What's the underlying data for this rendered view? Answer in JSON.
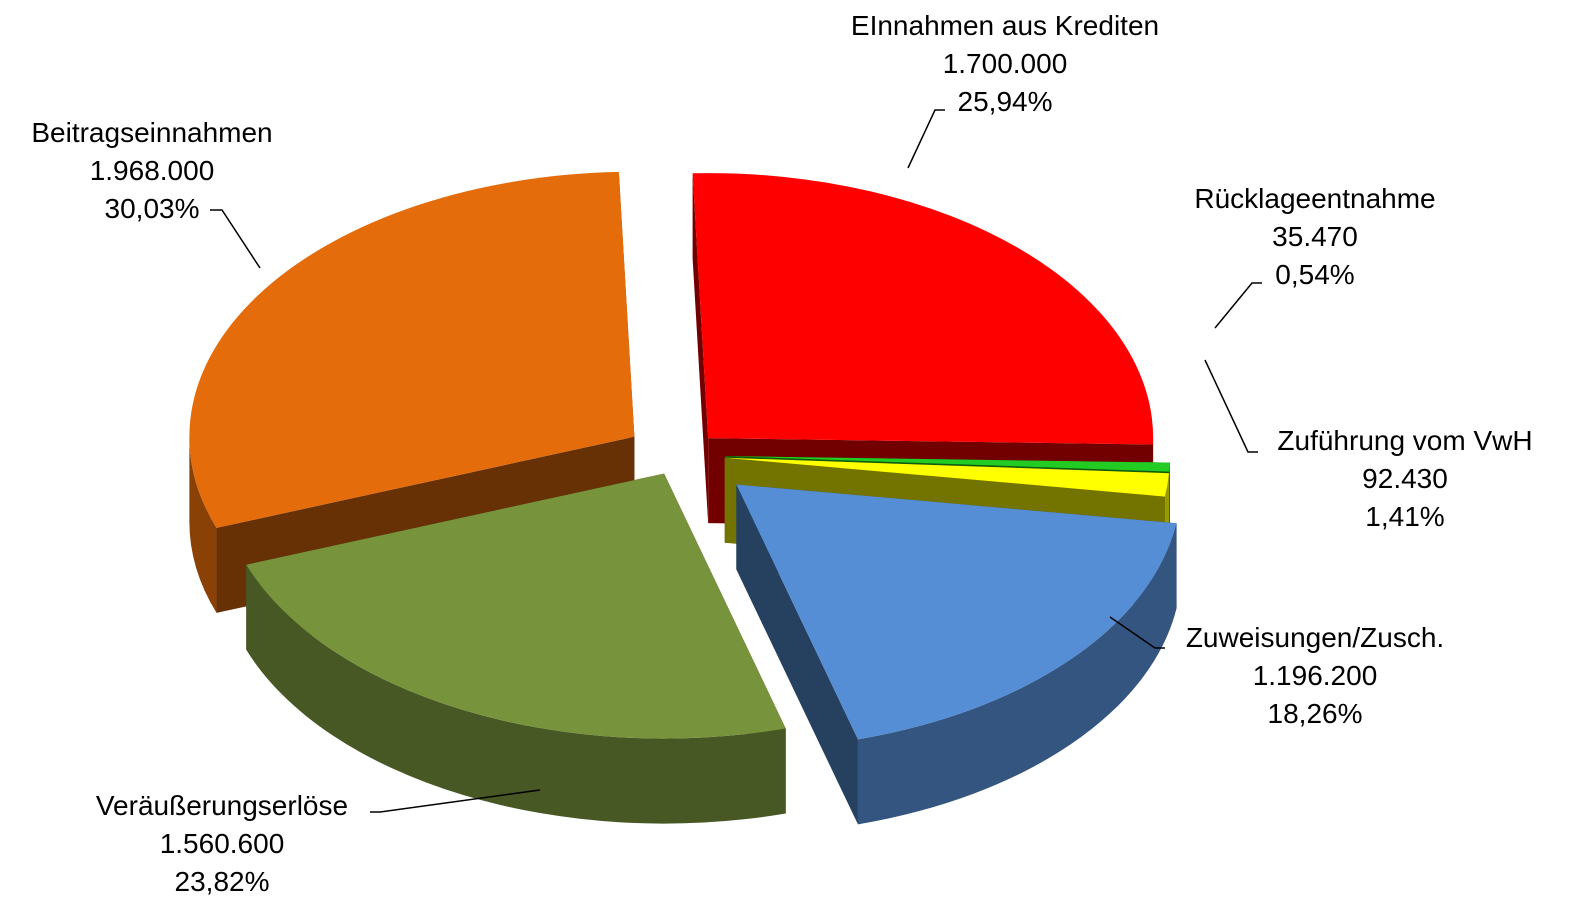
{
  "chart_data": {
    "type": "pie",
    "categories": [
      "EInnahmen aus Krediten",
      "Rücklageentnahme",
      "Zuführung vom VwH",
      "Zuweisungen/Zusch.",
      "Veräußerungserlöse",
      "Beitragseinnahmen"
    ],
    "values": [
      1700000,
      35470,
      92430,
      1196200,
      1560600,
      1968000
    ],
    "value_labels": [
      "1.700.000",
      "35.470",
      "92.430",
      "1.196.200",
      "1.560.600",
      "1.968.000"
    ],
    "percentages": [
      25.94,
      0.54,
      1.41,
      18.26,
      23.82,
      30.03
    ],
    "percentage_labels": [
      "25,94%",
      "0,54%",
      "1,41%",
      "18,26%",
      "23,82%",
      "30,03%"
    ],
    "colors": [
      "#ff0000",
      "#22cc22",
      "#ffff00",
      "#558ed5",
      "#77933c",
      "#e46c0a"
    ]
  }
}
